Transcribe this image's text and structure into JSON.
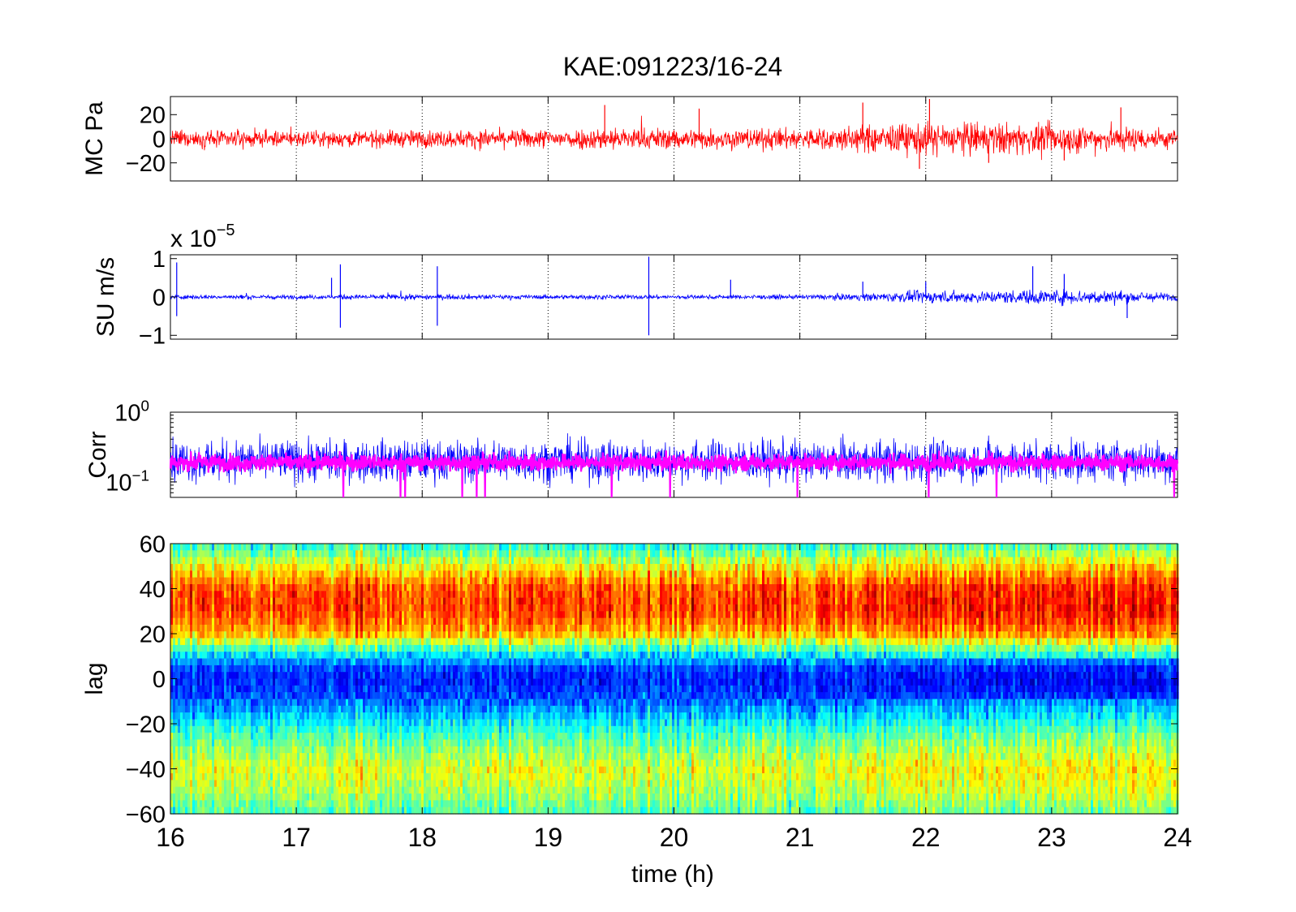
{
  "chart_data": {
    "title": "KAE:091223/16-24",
    "type": "multi-panel",
    "xlabel": "time (h)",
    "xlim": [
      16,
      24
    ],
    "xticks": [
      "16",
      "17",
      "18",
      "19",
      "20",
      "21",
      "22",
      "23",
      "24"
    ],
    "panels": [
      {
        "id": "mc",
        "type": "line",
        "ylabel": "MC Pa",
        "ylim": [
          -35,
          35
        ],
        "yticks": [
          {
            "value": 20,
            "label": "20"
          },
          {
            "value": 0,
            "label": "0"
          },
          {
            "value": -20,
            "label": "−20"
          }
        ],
        "grid": "vertical-dotted",
        "series": [
          {
            "color": "#ff0000",
            "envelope_x": [
              16,
              17,
              18,
              19,
              19.5,
              20,
              21,
              21.5,
              22,
              22.5,
              23,
              23.5,
              24
            ],
            "envelope_amp": [
              9,
              8,
              9,
              10,
              12,
              11,
              11,
              14,
              17,
              17,
              15,
              14,
              10
            ],
            "spikes": [
              [
                19.45,
                28
              ],
              [
                20.2,
                25
              ],
              [
                21.5,
                30
              ],
              [
                22.03,
                33
              ],
              [
                23.55,
                26
              ],
              [
                21.95,
                -25
              ],
              [
                22.5,
                -20
              ],
              [
                23.1,
                -18
              ]
            ]
          }
        ]
      },
      {
        "id": "su",
        "type": "line",
        "ylabel": "SU m/s",
        "multiplier": "x 10",
        "multiplier_exp": "−5",
        "ylim": [
          -1.1,
          1.1
        ],
        "yticks": [
          {
            "value": 1,
            "label": "1"
          },
          {
            "value": 0,
            "label": "0"
          },
          {
            "value": -1,
            "label": "−1"
          }
        ],
        "grid": "vertical-dotted",
        "series": [
          {
            "color": "#0000ff",
            "envelope_x": [
              16,
              17,
              18,
              19,
              20,
              21,
              21.5,
              22,
              22.5,
              23,
              23.5,
              24
            ],
            "envelope_amp": [
              0.07,
              0.07,
              0.09,
              0.07,
              0.07,
              0.07,
              0.12,
              0.2,
              0.2,
              0.25,
              0.22,
              0.12
            ],
            "spikes": [
              [
                16.05,
                0.9
              ],
              [
                16.05,
                -0.5
              ],
              [
                17.35,
                0.85
              ],
              [
                17.35,
                -0.8
              ],
              [
                17.28,
                0.5
              ],
              [
                18.12,
                0.8
              ],
              [
                18.12,
                -0.75
              ],
              [
                19.8,
                1.05
              ],
              [
                19.8,
                -1.0
              ],
              [
                20.45,
                0.45
              ],
              [
                21.5,
                0.4
              ],
              [
                22.0,
                0.4
              ],
              [
                22.85,
                0.8
              ],
              [
                23.1,
                0.6
              ],
              [
                23.6,
                -0.55
              ]
            ]
          }
        ]
      },
      {
        "id": "corr",
        "type": "line",
        "ylabel": "Corr",
        "yscale": "log",
        "ylim": [
          0.06,
          1.0
        ],
        "yticks": [
          {
            "value": 1.0,
            "label": "10",
            "exp": "0"
          },
          {
            "value": 0.1,
            "label": "10",
            "exp": "−1"
          }
        ],
        "grid": "vertical-dotted",
        "series": [
          {
            "color": "#0000ff",
            "center": 0.2,
            "spread": 0.2
          },
          {
            "color": "#ff00ff",
            "center": 0.19,
            "spread": 0.08
          }
        ]
      },
      {
        "id": "lag",
        "type": "heatmap",
        "ylabel": "lag",
        "ylim": [
          -60,
          60
        ],
        "yticks": [
          {
            "value": 60,
            "label": "60"
          },
          {
            "value": 40,
            "label": "40"
          },
          {
            "value": 20,
            "label": "20"
          },
          {
            "value": 0,
            "label": "0"
          },
          {
            "value": -20,
            "label": "−20"
          },
          {
            "value": -40,
            "label": "−40"
          },
          {
            "value": -60,
            "label": "−60"
          }
        ],
        "colormap": "jet",
        "profile_lag": [
          60,
          50,
          40,
          30,
          20,
          12,
          5,
          0,
          -8,
          -15,
          -25,
          -40,
          -50,
          -60
        ],
        "profile_value": [
          0.4,
          0.62,
          0.8,
          0.82,
          0.7,
          0.4,
          0.2,
          0.15,
          0.2,
          0.3,
          0.45,
          0.6,
          0.55,
          0.45
        ]
      }
    ]
  }
}
